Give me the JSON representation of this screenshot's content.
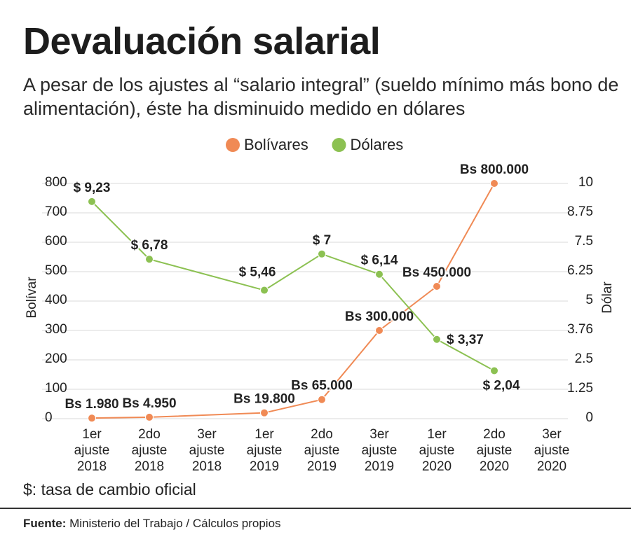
{
  "header": {
    "title": "Devaluación salarial",
    "subtitle": "A pesar de los ajustes al “salario integral” (sueldo mínimo más bono de alimentación), éste ha disminuido medido en dólares"
  },
  "footer": {
    "note": "$: tasa de cambio oficial",
    "source_label": "Fuente:",
    "source_text": "Ministerio del Trabajo / Cálculos propios"
  },
  "colors": {
    "bolivares": "#f08a55",
    "dolares": "#8cc152",
    "grid": "#d9d9d9",
    "text": "#222222"
  },
  "chart_data": {
    "type": "line",
    "categories": [
      [
        "1er",
        "ajuste",
        "2018"
      ],
      [
        "2do",
        "ajuste",
        "2018"
      ],
      [
        "3er",
        "ajuste",
        "2018"
      ],
      [
        "1er",
        "ajuste",
        "2019"
      ],
      [
        "2do",
        "ajuste",
        "2019"
      ],
      [
        "3er",
        "ajuste",
        "2019"
      ],
      [
        "1er",
        "ajuste",
        "2020"
      ],
      [
        "2do",
        "ajuste",
        "2020"
      ],
      [
        "3er",
        "ajuste",
        "2020"
      ]
    ],
    "y_left": {
      "label": "Bolívar",
      "ticks": [
        "0",
        "100",
        "200",
        "300",
        "400",
        "500",
        "600",
        "700",
        "800"
      ],
      "range": [
        0,
        800
      ]
    },
    "y_right": {
      "label": "Dólar",
      "ticks": [
        "0",
        "1.25",
        "2.5",
        "3.76",
        "5",
        "6.25",
        "7.5",
        "8.75",
        "10"
      ],
      "range": [
        0,
        10
      ]
    },
    "legend_position": "top-center",
    "grid": true,
    "series": [
      {
        "name": "Bolívares",
        "axis": "left",
        "color": "#f08a55",
        "points": [
          {
            "index": 0,
            "value": 1.98,
            "label": "Bs 1.980",
            "label_pos": "above"
          },
          {
            "index": 1,
            "value": 4.95,
            "label": "Bs 4.950",
            "label_pos": "above"
          },
          {
            "index": 3,
            "value": 19.8,
            "label": "Bs 19.800",
            "label_pos": "above"
          },
          {
            "index": 4,
            "value": 65,
            "label": "Bs 65.000",
            "label_pos": "above"
          },
          {
            "index": 5,
            "value": 300,
            "label": "Bs 300.000",
            "label_pos": "above"
          },
          {
            "index": 6,
            "value": 450,
            "label": "Bs 450.000",
            "label_pos": "above"
          },
          {
            "index": 7,
            "value": 800,
            "label": "Bs 800.000",
            "label_pos": "above"
          }
        ]
      },
      {
        "name": "Dólares",
        "axis": "right",
        "color": "#8cc152",
        "points": [
          {
            "index": 0,
            "value": 9.23,
            "label": "$ 9,23",
            "label_pos": "above"
          },
          {
            "index": 1,
            "value": 6.78,
            "label": "$ 6,78",
            "label_pos": "above"
          },
          {
            "index": 3,
            "value": 5.46,
            "label": "$ 5,46",
            "label_pos": "above-left"
          },
          {
            "index": 4,
            "value": 7,
            "label": "$ 7",
            "label_pos": "above"
          },
          {
            "index": 5,
            "value": 6.14,
            "label": "$ 6,14",
            "label_pos": "above"
          },
          {
            "index": 6,
            "value": 3.37,
            "label": "$ 3,37",
            "label_pos": "right"
          },
          {
            "index": 7,
            "value": 2.04,
            "label": "$ 2,04",
            "label_pos": "below"
          }
        ]
      }
    ]
  }
}
